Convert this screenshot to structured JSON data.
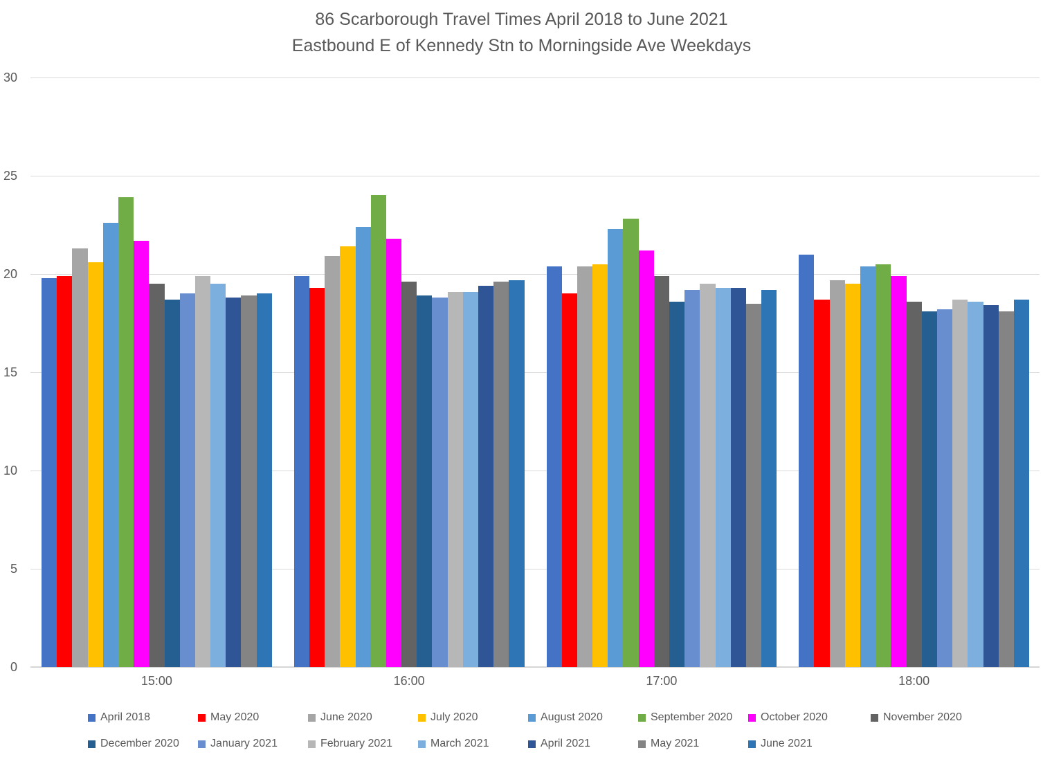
{
  "title": {
    "line1": "86 Scarborough Travel Times April 2018 to June 2021",
    "line2": "Eastbound E of Kennedy Stn to Morningside Ave Weekdays"
  },
  "colors": {
    "axis_text": "#595959",
    "gridline": "#D9D9D9",
    "background": "#FFFFFF"
  },
  "chart_data": {
    "type": "bar",
    "title": "86 Scarborough Travel Times April 2018 to June 2021",
    "subtitle": "Eastbound E of Kennedy Stn to Morningside Ave Weekdays",
    "xlabel": "",
    "ylabel": "",
    "ylim": [
      0,
      30
    ],
    "yticks": [
      0,
      5,
      10,
      15,
      20,
      25,
      30
    ],
    "grid": true,
    "legend_position": "bottom",
    "categories": [
      "15:00",
      "16:00",
      "17:00",
      "18:00"
    ],
    "series": [
      {
        "name": "April 2018",
        "color": "#4472C4",
        "values": [
          19.8,
          19.9,
          20.4,
          21.0
        ]
      },
      {
        "name": "May 2020",
        "color": "#FF0000",
        "values": [
          19.9,
          19.3,
          19.0,
          18.7
        ]
      },
      {
        "name": "June 2020",
        "color": "#A5A5A5",
        "values": [
          21.3,
          20.9,
          20.4,
          19.7
        ]
      },
      {
        "name": "July 2020",
        "color": "#FFC000",
        "values": [
          20.6,
          21.4,
          20.5,
          19.5
        ]
      },
      {
        "name": "August 2020",
        "color": "#5B9BD5",
        "values": [
          22.6,
          22.4,
          22.3,
          20.4
        ]
      },
      {
        "name": "September 2020",
        "color": "#70AD47",
        "values": [
          23.9,
          24.0,
          22.8,
          20.5
        ]
      },
      {
        "name": "October 2020",
        "color": "#FF00FF",
        "values": [
          21.7,
          21.8,
          21.2,
          19.9
        ]
      },
      {
        "name": "November 2020",
        "color": "#636363",
        "values": [
          19.5,
          19.6,
          19.9,
          18.6
        ]
      },
      {
        "name": "December 2020",
        "color": "#255E91",
        "values": [
          18.7,
          18.9,
          18.6,
          18.1
        ]
      },
      {
        "name": "January 2021",
        "color": "#698ED0",
        "values": [
          19.0,
          18.8,
          19.2,
          18.2
        ]
      },
      {
        "name": "February 2021",
        "color": "#B7B7B7",
        "values": [
          19.9,
          19.1,
          19.5,
          18.7
        ]
      },
      {
        "name": "March 2021",
        "color": "#7CAFDD",
        "values": [
          19.5,
          19.1,
          19.3,
          18.6
        ]
      },
      {
        "name": "April 2021",
        "color": "#2F5597",
        "values": [
          18.8,
          19.4,
          19.3,
          18.4
        ]
      },
      {
        "name": "May 2021",
        "color": "#848484",
        "values": [
          18.9,
          19.6,
          18.5,
          18.1
        ]
      },
      {
        "name": "June 2021",
        "color": "#2E75B6",
        "values": [
          19.0,
          19.7,
          19.2,
          18.7
        ]
      }
    ]
  }
}
